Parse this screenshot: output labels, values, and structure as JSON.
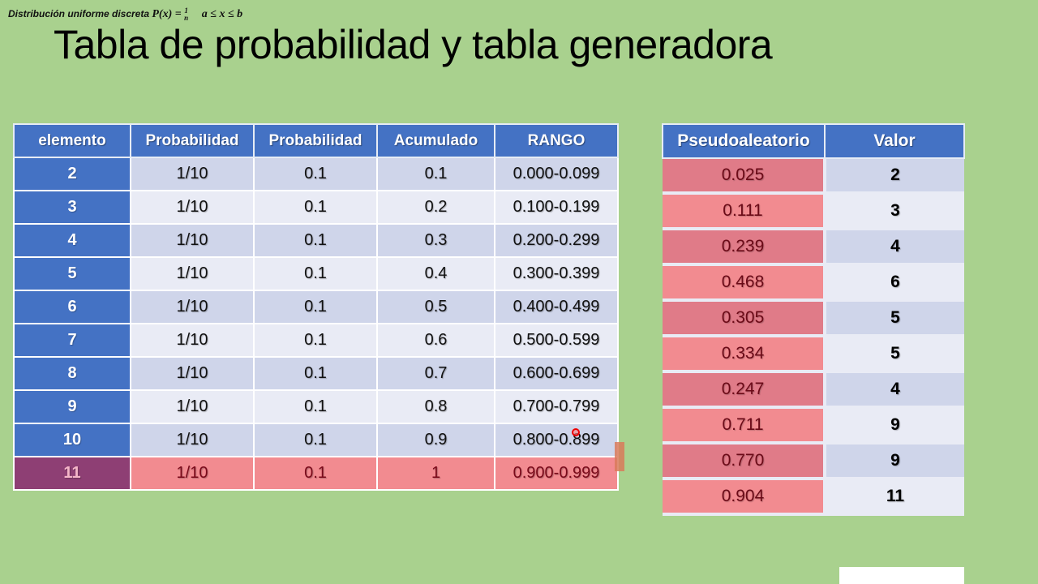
{
  "header": {
    "formula_text": "Distribución uniforme discreta",
    "formula_lhs": "P(x) =",
    "formula_num": "1",
    "formula_den": "n",
    "formula_range": "a ≤ x ≤ b",
    "title": "Tabla de probabilidad y tabla generadora"
  },
  "probability_table": {
    "headers": [
      "elemento",
      "Probabilidad",
      "Probabilidad",
      "Acumulado",
      "RANGO"
    ],
    "rows": [
      [
        "2",
        "1/10",
        "0.1",
        "0.1",
        "0.000-0.099"
      ],
      [
        "3",
        "1/10",
        "0.1",
        "0.2",
        "0.100-0.199"
      ],
      [
        "4",
        "1/10",
        "0.1",
        "0.3",
        "0.200-0.299"
      ],
      [
        "5",
        "1/10",
        "0.1",
        "0.4",
        "0.300-0.399"
      ],
      [
        "6",
        "1/10",
        "0.1",
        "0.5",
        "0.400-0.499"
      ],
      [
        "7",
        "1/10",
        "0.1",
        "0.6",
        "0.500-0.599"
      ],
      [
        "8",
        "1/10",
        "0.1",
        "0.7",
        "0.600-0.699"
      ],
      [
        "9",
        "1/10",
        "0.1",
        "0.8",
        "0.700-0.799"
      ],
      [
        "10",
        "1/10",
        "0.1",
        "0.9",
        "0.800-0.899"
      ],
      [
        "11",
        "1/10",
        "0.1",
        "1",
        "0.900-0.999"
      ]
    ],
    "highlighted_row": 9
  },
  "generator_table": {
    "headers": [
      "Pseudoaleatorio",
      "Valor"
    ],
    "rows": [
      [
        "0.025",
        "2"
      ],
      [
        "0.111",
        "3"
      ],
      [
        "0.239",
        "4"
      ],
      [
        "0.468",
        "6"
      ],
      [
        "0.305",
        "5"
      ],
      [
        "0.334",
        "5"
      ],
      [
        "0.247",
        "4"
      ],
      [
        "0.711",
        "9"
      ],
      [
        "0.770",
        "9"
      ],
      [
        "0.904",
        "11"
      ]
    ]
  },
  "colors": {
    "background": "#a9d18e",
    "header_blue": "#4472c4",
    "highlight_red": "#f28b90",
    "highlight_purple": "#8e3f74"
  }
}
